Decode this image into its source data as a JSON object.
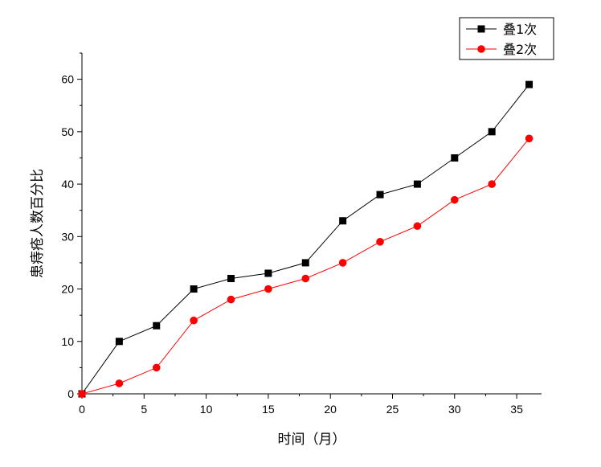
{
  "chart_data": {
    "type": "line",
    "title": "",
    "xlabel": "时间（月）",
    "ylabel": "患痔疮人数百分比",
    "xlim": [
      0,
      37
    ],
    "ylim": [
      0,
      65
    ],
    "xticks": [
      0,
      5,
      10,
      15,
      20,
      25,
      30,
      35
    ],
    "yticks": [
      0,
      10,
      20,
      30,
      40,
      50,
      60
    ],
    "grid": false,
    "legend_position": "top-right",
    "x": [
      0,
      3,
      6,
      9,
      12,
      15,
      18,
      21,
      24,
      27,
      30,
      33,
      36
    ],
    "series": [
      {
        "name": "叠1次",
        "color": "#000000",
        "marker": "square",
        "values": [
          0,
          10,
          13,
          20,
          22,
          23,
          25,
          33,
          38,
          40,
          45,
          50,
          59
        ]
      },
      {
        "name": "叠2次",
        "color": "#ff0000",
        "marker": "circle",
        "values": [
          0,
          2,
          5,
          14,
          18,
          20,
          22,
          25,
          29,
          32,
          37,
          40,
          48.7
        ]
      }
    ]
  }
}
